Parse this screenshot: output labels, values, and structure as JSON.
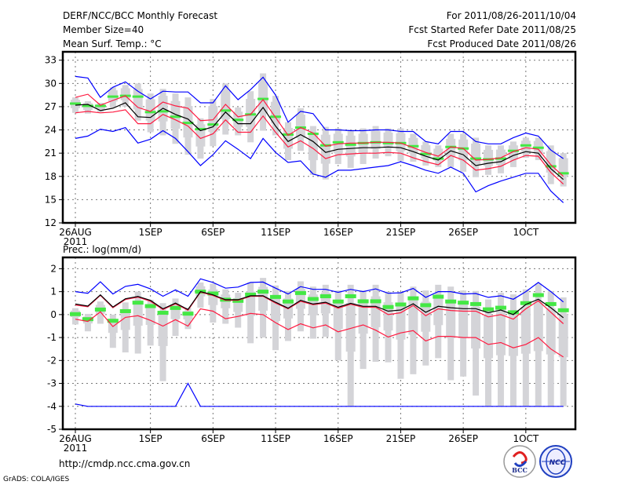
{
  "header": {
    "title": "DERF/NCC/BCC Monthly Forecast",
    "member_size": "Member Size=40",
    "variable": "Mean Surf. Temp.: °C",
    "period": "For 2011/08/26-2011/10/04",
    "started": "Fcst Started Refer Date 2011/08/25",
    "produced": "Fcst Produced Date 2011/08/26"
  },
  "footer": {
    "url": "http://cmdp.ncc.cma.gov.cn",
    "credit": "GrADS: COLA/IGES",
    "logo_bcc": "BCC",
    "logo_ncc": "NCC"
  },
  "colors": {
    "max_min": "#0000ff",
    "spread": "#ff1a40",
    "mean": "#000000",
    "observed": "#44e844",
    "range": "#d4d4d8"
  },
  "chart_data": [
    {
      "type": "line",
      "title": "Mean Surf. Temp.: °C",
      "x_start": "2011-08-26",
      "days": 40,
      "xticks": [
        {
          "day": 0,
          "label": "26AUG",
          "sub": "2011"
        },
        {
          "day": 6,
          "label": "1SEP"
        },
        {
          "day": 11,
          "label": "6SEP"
        },
        {
          "day": 16,
          "label": "11SEP"
        },
        {
          "day": 21,
          "label": "16SEP"
        },
        {
          "day": 26,
          "label": "21SEP"
        },
        {
          "day": 31,
          "label": "26SEP"
        },
        {
          "day": 36,
          "label": "1OCT"
        }
      ],
      "ylim": [
        12,
        33
      ],
      "yticks": [
        "12",
        "15",
        "18",
        "21",
        "24",
        "27",
        "30",
        "33"
      ],
      "grid": true,
      "series": {
        "max": [
          30.9,
          30.7,
          28.2,
          29.5,
          30.2,
          29.0,
          28.0,
          29.0,
          28.9,
          28.9,
          27.5,
          27.5,
          29.7,
          27.9,
          29.2,
          30.8,
          28.5,
          25.0,
          26.4,
          26.1,
          24.0,
          24.0,
          23.9,
          23.9,
          24.0,
          24.0,
          23.8,
          23.8,
          22.5,
          22.2,
          23.8,
          23.8,
          22.5,
          22.2,
          22.2,
          23.0,
          23.6,
          23.2,
          21.4,
          20.3
        ],
        "upper": [
          28.2,
          28.6,
          27.2,
          27.8,
          28.4,
          26.9,
          26.4,
          27.6,
          27.1,
          26.8,
          25.2,
          25.3,
          27.3,
          25.7,
          26.0,
          27.9,
          25.6,
          23.3,
          24.3,
          23.6,
          21.9,
          22.2,
          22.3,
          22.3,
          22.4,
          22.4,
          22.3,
          21.7,
          21.1,
          20.6,
          21.8,
          21.6,
          20.1,
          20.2,
          20.4,
          21.2,
          21.7,
          21.5,
          19.5,
          18.0
        ],
        "mean": [
          27.2,
          27.3,
          26.5,
          26.8,
          27.5,
          25.7,
          25.6,
          26.8,
          26.0,
          25.4,
          23.9,
          24.4,
          26.3,
          24.8,
          24.8,
          26.9,
          24.5,
          22.5,
          23.4,
          22.5,
          21.1,
          21.5,
          21.6,
          21.7,
          21.7,
          21.8,
          21.7,
          21.2,
          20.6,
          20.1,
          21.3,
          20.8,
          19.4,
          19.7,
          19.9,
          20.7,
          21.2,
          21.0,
          19.0,
          17.6
        ],
        "lower": [
          26.2,
          26.4,
          26.2,
          26.3,
          26.6,
          24.8,
          24.8,
          26.0,
          25.3,
          24.5,
          22.9,
          23.5,
          25.3,
          23.7,
          23.7,
          25.8,
          23.7,
          21.8,
          22.6,
          21.6,
          20.3,
          20.8,
          20.9,
          21.0,
          21.0,
          21.1,
          21.0,
          20.4,
          19.9,
          19.5,
          20.7,
          20.1,
          18.8,
          19.0,
          19.3,
          20.1,
          20.7,
          20.6,
          18.5,
          17.0
        ],
        "min": [
          22.9,
          23.2,
          24.1,
          23.8,
          24.3,
          22.3,
          22.8,
          23.9,
          22.9,
          21.2,
          19.4,
          20.8,
          22.6,
          21.5,
          20.3,
          22.9,
          21.1,
          19.8,
          20.0,
          18.3,
          17.9,
          18.8,
          18.8,
          19.0,
          19.2,
          19.4,
          19.9,
          19.4,
          18.8,
          18.4,
          19.2,
          18.4,
          16.0,
          16.8,
          17.4,
          17.9,
          18.4,
          18.4,
          16.1,
          14.6
        ],
        "observed": [
          27.4,
          27.1,
          27.1,
          28.3,
          28.4,
          28.3,
          26.3,
          26.4,
          25.7,
          24.9,
          24.1,
          24.7,
          26.5,
          25.3,
          26.0,
          28.0,
          25.7,
          23.4,
          24.3,
          23.5,
          22.0,
          22.4,
          22.1,
          22.3,
          22.4,
          22.3,
          22.3,
          21.9,
          20.9,
          20.3,
          21.8,
          21.6,
          20.3,
          20.2,
          20.3,
          21.3,
          22.0,
          21.7,
          19.3,
          18.4
        ],
        "range_hi": [
          28.2,
          27.7,
          27.5,
          29.5,
          29.8,
          30.0,
          28.7,
          29.3,
          28.7,
          28.2,
          25.5,
          28.0,
          30.0,
          26.9,
          29.0,
          31.3,
          28.4,
          25.0,
          26.8,
          24.5,
          24.4,
          24.2,
          24.0,
          24.2,
          24.5,
          24.2,
          24.2,
          23.5,
          22.5,
          22.0,
          23.5,
          23.5,
          23.0,
          22.0,
          22.0,
          22.5,
          23.0,
          23.0,
          22.0,
          21.0
        ],
        "range_lo": [
          26.2,
          26.1,
          26.3,
          26.9,
          27.0,
          25.2,
          23.7,
          23.3,
          22.2,
          20.8,
          20.3,
          21.9,
          23.4,
          23.3,
          22.4,
          23.9,
          23.3,
          20.1,
          21.3,
          18.2,
          17.6,
          19.6,
          19.1,
          19.6,
          20.3,
          20.6,
          20.0,
          19.9,
          19.4,
          19.2,
          19.2,
          18.6,
          17.9,
          18.2,
          18.4,
          19.2,
          20.4,
          20.1,
          17.0,
          16.7
        ]
      }
    },
    {
      "type": "line",
      "title": "Prec.: log(mm/d)",
      "x_start": "2011-08-26",
      "days": 40,
      "xticks": [
        {
          "day": 0,
          "label": "26AUG",
          "sub": "2011"
        },
        {
          "day": 6,
          "label": "1SEP"
        },
        {
          "day": 11,
          "label": "6SEP"
        },
        {
          "day": 16,
          "label": "11SEP"
        },
        {
          "day": 21,
          "label": "16SEP"
        },
        {
          "day": 26,
          "label": "21SEP"
        },
        {
          "day": 31,
          "label": "26SEP"
        },
        {
          "day": 36,
          "label": "1OCT"
        }
      ],
      "ylim": [
        -5,
        2
      ],
      "yticks": [
        "-5",
        "-4",
        "-3",
        "-2",
        "-1",
        "0",
        "1",
        "2"
      ],
      "grid": true,
      "series": {
        "max": [
          1.0,
          0.93,
          1.43,
          0.9,
          1.23,
          1.32,
          1.12,
          0.8,
          1.08,
          0.8,
          1.56,
          1.4,
          1.15,
          1.2,
          1.4,
          1.42,
          1.15,
          0.9,
          1.22,
          1.1,
          1.1,
          0.97,
          1.1,
          1.0,
          1.12,
          0.93,
          0.95,
          1.14,
          0.75,
          1.0,
          1.0,
          0.9,
          0.92,
          0.75,
          0.82,
          0.67,
          1.0,
          1.4,
          1.0,
          0.55
        ],
        "upper": [
          0.42,
          0.34,
          0.84,
          0.3,
          0.66,
          0.76,
          0.58,
          0.22,
          0.47,
          0.19,
          0.98,
          0.83,
          0.62,
          0.62,
          0.8,
          0.8,
          0.5,
          0.25,
          0.58,
          0.43,
          0.5,
          0.28,
          0.45,
          0.32,
          0.32,
          0.0,
          0.08,
          0.4,
          -0.05,
          0.25,
          0.18,
          0.15,
          0.15,
          -0.1,
          0.0,
          -0.2,
          0.25,
          0.6,
          0.1,
          -0.4
        ],
        "mean": [
          0.46,
          0.37,
          0.86,
          0.33,
          0.69,
          0.79,
          0.62,
          0.25,
          0.5,
          0.22,
          1.0,
          0.86,
          0.65,
          0.65,
          0.82,
          0.82,
          0.54,
          0.28,
          0.62,
          0.46,
          0.54,
          0.32,
          0.49,
          0.36,
          0.36,
          0.15,
          0.2,
          0.47,
          0.1,
          0.36,
          0.3,
          0.26,
          0.26,
          0.08,
          0.2,
          0.0,
          0.44,
          0.67,
          0.3,
          -0.14
        ],
        "lower": [
          -0.2,
          -0.3,
          0.12,
          -0.52,
          -0.12,
          -0.05,
          -0.25,
          -0.5,
          -0.22,
          -0.5,
          0.25,
          0.15,
          -0.18,
          -0.08,
          0.05,
          0.0,
          -0.35,
          -0.65,
          -0.4,
          -0.58,
          -0.45,
          -0.75,
          -0.6,
          -0.45,
          -0.68,
          -0.98,
          -0.8,
          -0.7,
          -1.15,
          -0.95,
          -0.95,
          -1.0,
          -1.0,
          -1.3,
          -1.22,
          -1.45,
          -1.3,
          -1.0,
          -1.5,
          -1.85
        ],
        "min": [
          -3.9,
          -4,
          -4,
          -4,
          -4,
          -4,
          -4,
          -4,
          -4,
          -3,
          -4,
          -4,
          -4,
          -4,
          -4,
          -4,
          -4,
          -4,
          -4,
          -4,
          -4,
          -4,
          -4,
          -4,
          -4,
          -4,
          -4,
          -4,
          -4,
          -4,
          -4,
          -4,
          -4,
          -4,
          -4,
          -4,
          -4,
          -4,
          -4,
          -4
        ],
        "observed": [
          0.02,
          -0.2,
          0.22,
          -0.27,
          0.15,
          0.52,
          0.37,
          0.08,
          0.29,
          0.04,
          1.0,
          0.92,
          0.65,
          0.6,
          0.87,
          1.0,
          0.77,
          0.57,
          0.94,
          0.68,
          0.8,
          0.57,
          0.8,
          0.58,
          0.58,
          0.33,
          0.44,
          0.71,
          0.41,
          0.78,
          0.57,
          0.52,
          0.46,
          0.23,
          0.3,
          0.1,
          0.5,
          0.85,
          0.46,
          0.19
        ],
        "range_hi": [
          0.28,
          0.03,
          0.57,
          0.0,
          0.53,
          1.0,
          0.65,
          0.5,
          0.7,
          0.3,
          1.4,
          1.35,
          1.1,
          0.95,
          1.4,
          1.6,
          1.27,
          1.03,
          1.45,
          1.22,
          1.3,
          1.05,
          1.3,
          1.05,
          1.3,
          1.0,
          1.0,
          1.22,
          1.05,
          1.3,
          1.22,
          1.05,
          1.03,
          0.66,
          0.95,
          0.88,
          1.1,
          1.35,
          1.03,
          0.75
        ],
        "range_lo": [
          -0.43,
          -0.73,
          -0.4,
          -1.45,
          -1.65,
          -1.7,
          -1.35,
          -2.9,
          -0.93,
          -0.63,
          0.3,
          -0.35,
          -0.4,
          -0.57,
          -1.25,
          -1.0,
          -1.55,
          -1.15,
          -0.73,
          -1.05,
          -0.97,
          -2.0,
          -4.0,
          -2.37,
          -2.06,
          -2.08,
          -2.8,
          -2.6,
          -2.22,
          -1.9,
          -2.86,
          -2.7,
          -3.53,
          -4,
          -4,
          -4,
          -4,
          -4,
          -4,
          -4
        ]
      }
    }
  ]
}
